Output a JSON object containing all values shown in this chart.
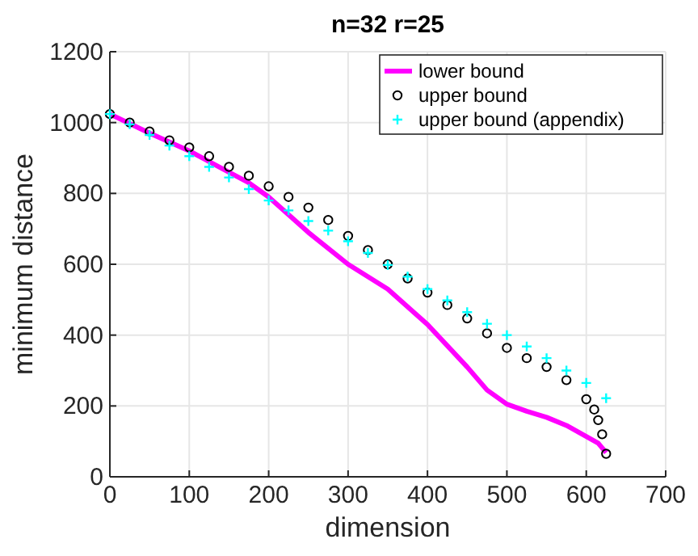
{
  "chart_data": {
    "type": "line",
    "title": "n=32  r=25",
    "xlabel": "dimension",
    "ylabel": "minimum distance",
    "xlim": [
      0,
      700
    ],
    "xticks": [
      0,
      100,
      200,
      300,
      400,
      500,
      600,
      700
    ],
    "ylim": [
      0,
      1200
    ],
    "yticks": [
      0,
      200,
      400,
      600,
      800,
      1000,
      1200
    ],
    "grid": true,
    "legend": "top right",
    "series": [
      {
        "name": "lower bound",
        "color": "#ff00ff",
        "x": [
          0,
          50,
          100,
          150,
          175,
          200,
          250,
          300,
          350,
          400,
          450,
          475,
          500,
          525,
          550,
          575,
          600,
          615,
          625
        ],
        "values": [
          1024,
          970,
          920,
          860,
          830,
          790,
          690,
          600,
          530,
          430,
          310,
          245,
          205,
          185,
          168,
          145,
          114,
          95,
          68
        ]
      },
      {
        "name": "upper bound",
        "type": "scatter",
        "marker": "circle",
        "color": "#000000",
        "x": [
          0,
          25,
          50,
          75,
          100,
          125,
          150,
          175,
          200,
          225,
          250,
          275,
          300,
          325,
          350,
          375,
          400,
          425,
          450,
          475,
          500,
          525,
          550,
          575,
          600,
          610,
          615,
          620,
          625
        ],
        "values": [
          1024,
          1000,
          975,
          950,
          930,
          905,
          875,
          850,
          820,
          790,
          760,
          725,
          680,
          640,
          600,
          560,
          520,
          485,
          447,
          405,
          364,
          335,
          310,
          273,
          219,
          190,
          160,
          120,
          65
        ]
      },
      {
        "name": "upper bound (appendix)",
        "type": "scatter",
        "marker": "cross",
        "color": "#00ffff",
        "x": [
          0,
          25,
          50,
          75,
          100,
          125,
          150,
          175,
          200,
          225,
          250,
          275,
          300,
          325,
          350,
          375,
          400,
          425,
          450,
          475,
          500,
          525,
          550,
          575,
          600,
          625
        ],
        "values": [
          1024,
          995,
          965,
          935,
          905,
          875,
          845,
          812,
          780,
          752,
          722,
          695,
          665,
          632,
          598,
          565,
          530,
          498,
          465,
          432,
          400,
          368,
          335,
          300,
          265,
          222
        ]
      }
    ]
  }
}
